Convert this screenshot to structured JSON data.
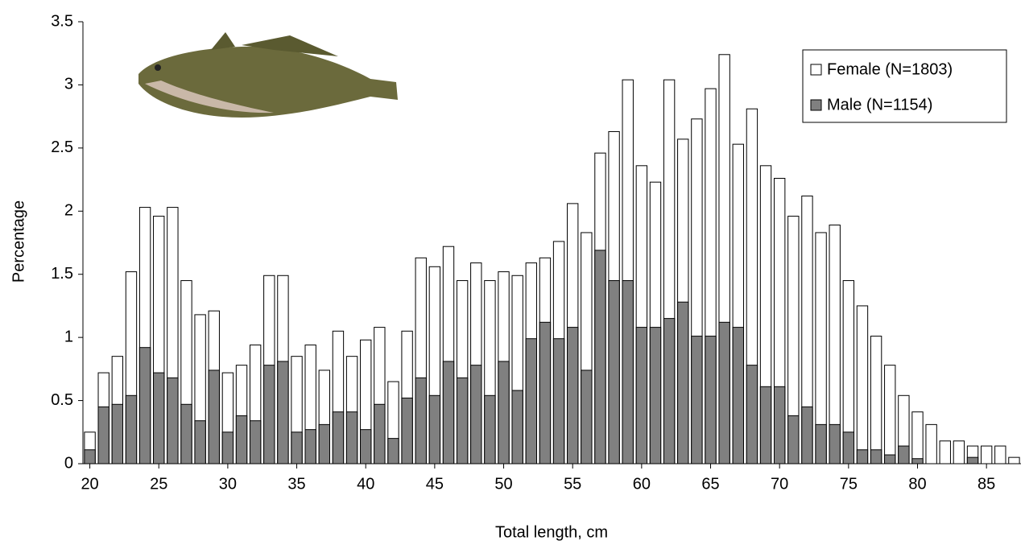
{
  "chart_data": {
    "type": "bar",
    "x_label": "Total length, cm",
    "y_label": "Percentage",
    "x": [
      20,
      21,
      22,
      23,
      24,
      25,
      26,
      27,
      28,
      29,
      30,
      31,
      32,
      33,
      34,
      35,
      36,
      37,
      38,
      39,
      40,
      41,
      42,
      43,
      44,
      45,
      46,
      47,
      48,
      49,
      50,
      51,
      52,
      53,
      54,
      55,
      56,
      57,
      58,
      59,
      60,
      61,
      62,
      63,
      64,
      65,
      66,
      67,
      68,
      69,
      70,
      71,
      72,
      73,
      74,
      75,
      76,
      77,
      78,
      79,
      80,
      81,
      82,
      83,
      84,
      85,
      86,
      87
    ],
    "series": [
      {
        "name": "Female (N=1803)",
        "color": "#ffffff",
        "values": [
          0.25,
          0.72,
          0.85,
          1.52,
          2.03,
          1.96,
          2.03,
          1.45,
          1.18,
          1.21,
          0.72,
          0.78,
          0.94,
          1.49,
          1.49,
          0.85,
          0.94,
          0.74,
          1.05,
          0.85,
          0.98,
          1.08,
          0.65,
          1.05,
          1.63,
          1.56,
          1.72,
          1.45,
          1.59,
          1.45,
          1.52,
          1.49,
          1.59,
          1.63,
          1.76,
          2.06,
          1.83,
          2.46,
          2.63,
          3.04,
          2.36,
          2.23,
          3.04,
          2.57,
          2.73,
          2.97,
          3.24,
          2.53,
          2.81,
          2.36,
          2.26,
          1.96,
          2.12,
          1.83,
          1.89,
          1.45,
          1.25,
          1.01,
          0.78,
          0.54,
          0.41,
          0.31,
          0.18,
          0.18,
          0.14,
          0.14,
          0.14,
          0.05
        ]
      },
      {
        "name": "Male (N=1154)",
        "color": "#808080",
        "values": [
          0.11,
          0.45,
          0.47,
          0.54,
          0.92,
          0.72,
          0.68,
          0.47,
          0.34,
          0.74,
          0.25,
          0.38,
          0.34,
          0.78,
          0.81,
          0.25,
          0.27,
          0.31,
          0.41,
          0.41,
          0.27,
          0.47,
          0.2,
          0.52,
          0.68,
          0.54,
          0.81,
          0.68,
          0.78,
          0.54,
          0.81,
          0.58,
          0.99,
          1.12,
          0.99,
          1.08,
          0.74,
          1.69,
          1.45,
          1.45,
          1.08,
          1.08,
          1.15,
          1.28,
          1.01,
          1.01,
          1.12,
          1.08,
          0.78,
          0.61,
          0.61,
          0.38,
          0.45,
          0.31,
          0.31,
          0.25,
          0.11,
          0.11,
          0.07,
          0.14,
          0.04,
          0,
          0,
          0,
          0.05,
          0,
          0,
          0
        ]
      }
    ],
    "xlim": [
      19.5,
      87.5
    ],
    "xticks": [
      20,
      25,
      30,
      35,
      40,
      45,
      50,
      55,
      60,
      65,
      70,
      75,
      80,
      85
    ],
    "ylim": [
      0,
      3.5
    ],
    "yticks": [
      0,
      0.5,
      1,
      1.5,
      2,
      2.5,
      3,
      3.5
    ],
    "grid": false,
    "legend": "upper-right"
  }
}
